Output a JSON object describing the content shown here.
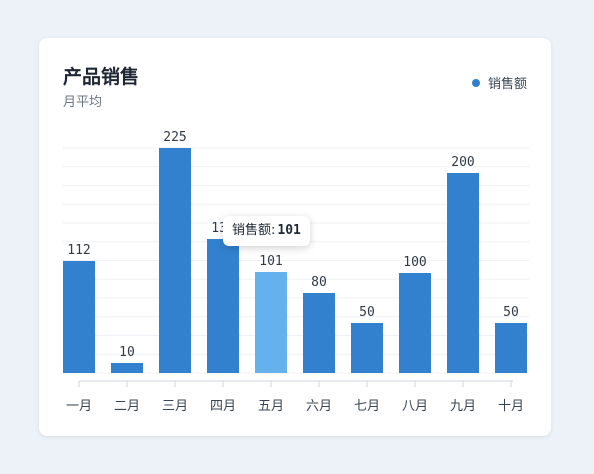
{
  "card": {
    "title": "产品销售",
    "subtitle": "月平均"
  },
  "legend": {
    "label": "销售额",
    "color": "#3181cf"
  },
  "tooltip": {
    "label": "销售额:",
    "value": "101"
  },
  "colors": {
    "bar": "#3181cf",
    "bar_highlight": "#64b1ee",
    "grid": "#eef1f5",
    "axis": "#cfd6df"
  },
  "chart_data": {
    "type": "bar",
    "categories": [
      "一月",
      "二月",
      "三月",
      "四月",
      "五月",
      "六月",
      "七月",
      "八月",
      "九月",
      "十月"
    ],
    "series": [
      {
        "name": "销售额",
        "values": [
          112,
          10,
          225,
          134,
          101,
          80,
          50,
          100,
          200,
          50
        ]
      }
    ],
    "title": "产品销售",
    "subtitle": "月平均",
    "xlabel": "",
    "ylabel": "",
    "ylim": [
      0,
      225
    ],
    "highlight_index": 4,
    "grid": true,
    "legend_position": "top-right"
  }
}
